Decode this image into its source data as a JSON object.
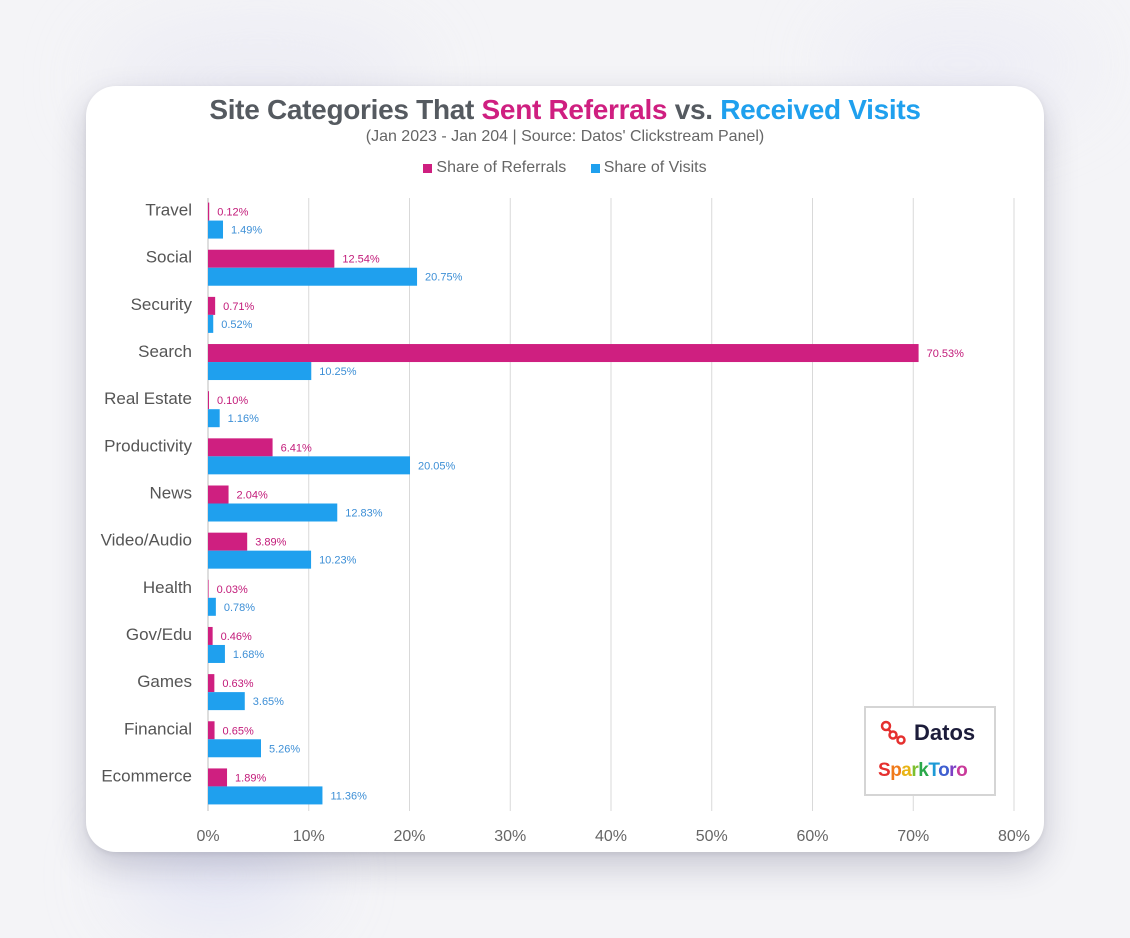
{
  "title": {
    "part1": "Site Categories That",
    "part2": "Sent Referrals",
    "part3": "vs.",
    "part4": "Received Visits"
  },
  "subtitle": "(Jan 2023 - Jan 204 | Source: Datos' Clickstream Panel)",
  "colors": {
    "referrals": "#cf1f80",
    "visits": "#1fa0ee",
    "label_referrals": "#c21a79",
    "label_visits": "#3d8fd6",
    "title_gray": "#555a60"
  },
  "logos": {
    "datos": "Datos",
    "sparktoro": [
      "S",
      "p",
      "a",
      "r",
      "k",
      "T",
      "o",
      "r",
      "o"
    ]
  },
  "chart_data": {
    "type": "bar",
    "orientation": "horizontal",
    "categories": [
      "Travel",
      "Social",
      "Security",
      "Search",
      "Real Estate",
      "Productivity",
      "News",
      "Video/Audio",
      "Health",
      "Gov/Edu",
      "Games",
      "Financial",
      "Ecommerce"
    ],
    "series": [
      {
        "name": "Share of Referrals",
        "values": [
          0.12,
          12.54,
          0.71,
          70.53,
          0.1,
          6.41,
          2.04,
          3.89,
          0.03,
          0.46,
          0.63,
          0.65,
          1.89
        ],
        "labels": [
          "0.12%",
          "12.54%",
          "0.71%",
          "70.53%",
          "0.10%",
          "6.41%",
          "2.04%",
          "3.89%",
          "0.03%",
          "0.46%",
          "0.63%",
          "0.65%",
          "1.89%"
        ]
      },
      {
        "name": "Share of Visits",
        "values": [
          1.49,
          20.75,
          0.52,
          10.25,
          1.16,
          20.05,
          12.83,
          10.23,
          0.78,
          1.68,
          3.65,
          5.26,
          11.36
        ],
        "labels": [
          "1.49%",
          "20.75%",
          "0.52%",
          "10.25%",
          "1.16%",
          "20.05%",
          "12.83%",
          "10.23%",
          "0.78%",
          "1.68%",
          "3.65%",
          "5.26%",
          "11.36%"
        ]
      }
    ],
    "xlim": [
      0,
      80
    ],
    "xticks": [
      0,
      10,
      20,
      30,
      40,
      50,
      60,
      70,
      80
    ],
    "xtick_labels": [
      "0%",
      "10%",
      "20%",
      "30%",
      "40%",
      "50%",
      "60%",
      "70%",
      "80%"
    ],
    "grid": true,
    "legend": "top-center"
  }
}
